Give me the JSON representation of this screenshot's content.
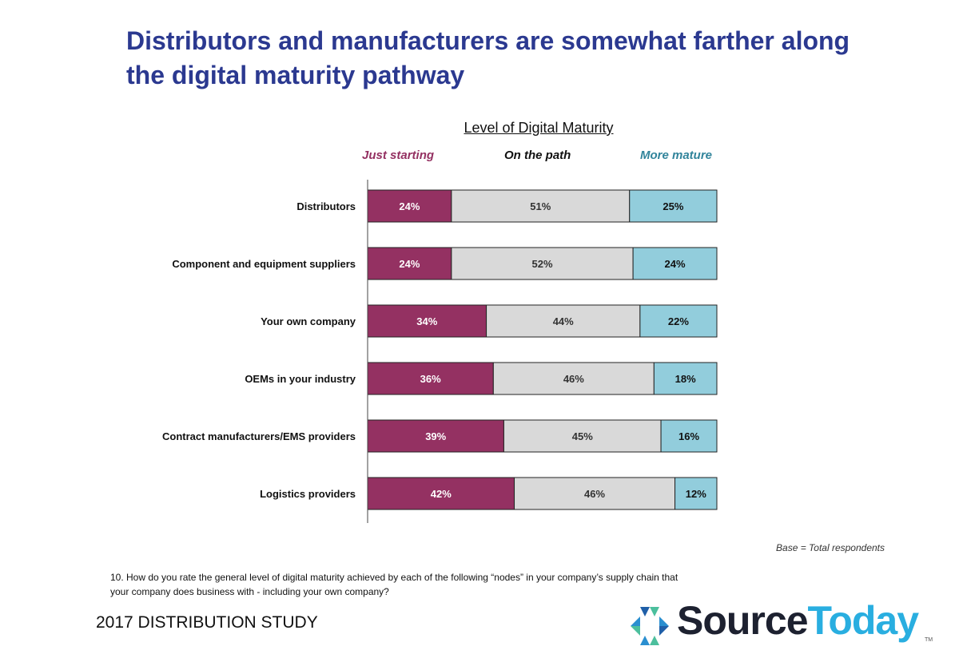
{
  "title": "Distributors and manufacturers are somewhat farther along the digital maturity pathway",
  "footer": {
    "base_note": "Base = Total respondents",
    "question": "10.  How do you rate the general level of digital maturity achieved by each of the following “nodes” in your company’s supply chain that your company does business with - including your own company?",
    "study": "2017 DISTRIBUTION STUDY",
    "logo": {
      "part1": "Source",
      "part2": "Today",
      "tm": "TM"
    }
  },
  "chart_data": {
    "type": "bar",
    "orientation": "horizontal",
    "stacked": true,
    "title": "Level of Digital Maturity",
    "categories": [
      "Distributors",
      "Component and equipment suppliers",
      "Your own company",
      "OEMs in your industry",
      "Contract manufacturers/EMS providers",
      "Logistics providers"
    ],
    "series": [
      {
        "name": "Just starting",
        "color": "#943162",
        "label_color": "#ffffff",
        "values": [
          24,
          24,
          34,
          36,
          39,
          42
        ]
      },
      {
        "name": "On the path",
        "color": "#d9d9d9",
        "label_color": "#333333",
        "values": [
          51,
          52,
          44,
          46,
          45,
          46
        ]
      },
      {
        "name": "More mature",
        "color": "#92cddc",
        "label_color": "#111111",
        "values": [
          25,
          24,
          22,
          18,
          16,
          12
        ]
      }
    ],
    "legend_colors": [
      "#943162",
      "#111111",
      "#31849b"
    ],
    "value_suffix": "%",
    "xlim": [
      0,
      100
    ],
    "legend_placement": "top",
    "grid": false
  }
}
